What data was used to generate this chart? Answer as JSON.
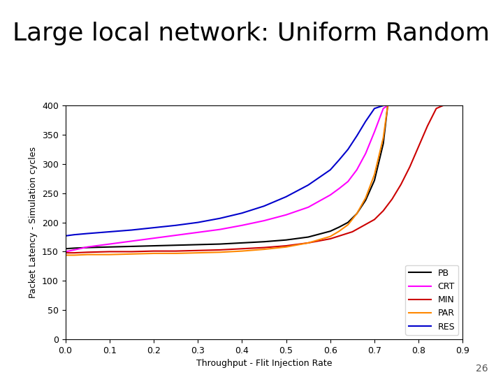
{
  "title": "Large local network: Uniform Random",
  "xlabel": "Throughput - Flit Injection Rate",
  "ylabel": "Packet Latency - Simulation cycles",
  "xlim": [
    0,
    0.9
  ],
  "ylim": [
    0,
    400
  ],
  "xticks": [
    0,
    0.1,
    0.2,
    0.3,
    0.4,
    0.5,
    0.6,
    0.7,
    0.8,
    0.9
  ],
  "yticks": [
    0,
    50,
    100,
    150,
    200,
    250,
    300,
    350,
    400
  ],
  "footnote": "26",
  "title_fontsize": 26,
  "axis_fontsize": 9,
  "tick_fontsize": 9,
  "legend_fontsize": 9,
  "series": {
    "PB": {
      "color": "#000000",
      "x": [
        0.0,
        0.02,
        0.05,
        0.1,
        0.15,
        0.2,
        0.25,
        0.3,
        0.35,
        0.4,
        0.45,
        0.5,
        0.55,
        0.6,
        0.62,
        0.64,
        0.66,
        0.68,
        0.7,
        0.72,
        0.73
      ],
      "y": [
        155,
        156,
        157,
        158,
        159,
        160,
        161,
        162,
        163,
        165,
        167,
        170,
        175,
        185,
        192,
        200,
        215,
        238,
        272,
        335,
        400
      ]
    },
    "CRT": {
      "color": "#ff00ff",
      "x": [
        0.0,
        0.02,
        0.05,
        0.1,
        0.15,
        0.2,
        0.25,
        0.3,
        0.35,
        0.4,
        0.45,
        0.5,
        0.55,
        0.6,
        0.62,
        0.64,
        0.66,
        0.68,
        0.7,
        0.72,
        0.73
      ],
      "y": [
        150,
        153,
        158,
        163,
        168,
        173,
        178,
        183,
        188,
        195,
        203,
        213,
        226,
        247,
        258,
        270,
        290,
        318,
        355,
        395,
        400
      ]
    },
    "MIN": {
      "color": "#cc0000",
      "x": [
        0.0,
        0.02,
        0.05,
        0.1,
        0.15,
        0.2,
        0.25,
        0.3,
        0.35,
        0.4,
        0.45,
        0.5,
        0.55,
        0.6,
        0.65,
        0.7,
        0.72,
        0.74,
        0.76,
        0.78,
        0.8,
        0.82,
        0.84,
        0.855
      ],
      "y": [
        148,
        148,
        149,
        150,
        150,
        151,
        151,
        152,
        153,
        155,
        157,
        160,
        165,
        172,
        184,
        205,
        220,
        240,
        265,
        295,
        330,
        365,
        395,
        400
      ]
    },
    "PAR": {
      "color": "#ff8800",
      "x": [
        0.0,
        0.02,
        0.05,
        0.1,
        0.15,
        0.2,
        0.25,
        0.3,
        0.35,
        0.4,
        0.45,
        0.5,
        0.55,
        0.6,
        0.62,
        0.64,
        0.66,
        0.68,
        0.7,
        0.72,
        0.73
      ],
      "y": [
        144,
        144,
        145,
        145,
        146,
        147,
        147,
        148,
        149,
        151,
        154,
        158,
        165,
        176,
        185,
        196,
        215,
        242,
        282,
        345,
        400
      ]
    },
    "RES": {
      "color": "#0000cc",
      "x": [
        0.0,
        0.02,
        0.05,
        0.1,
        0.15,
        0.2,
        0.25,
        0.3,
        0.35,
        0.4,
        0.45,
        0.5,
        0.55,
        0.6,
        0.62,
        0.64,
        0.66,
        0.68,
        0.7,
        0.72
      ],
      "y": [
        177,
        179,
        181,
        184,
        187,
        191,
        195,
        200,
        207,
        216,
        228,
        244,
        264,
        290,
        307,
        325,
        348,
        373,
        395,
        400
      ]
    }
  }
}
